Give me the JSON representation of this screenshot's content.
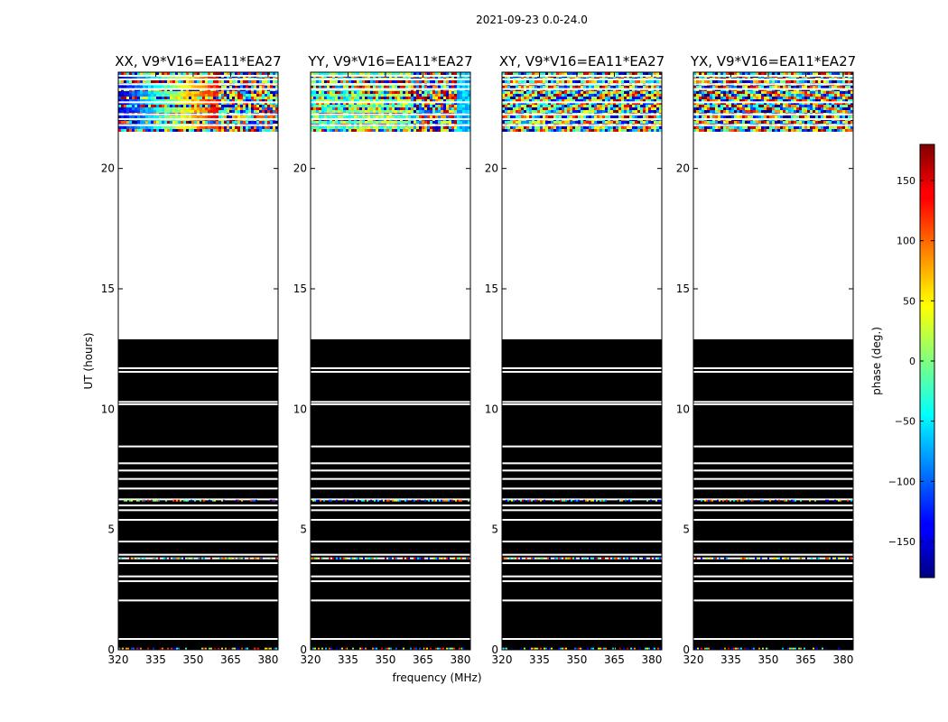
{
  "figure": {
    "suptitle": "2021-09-23 0.0-24.0"
  },
  "chart_data": {
    "type": "heatmap",
    "xlabel": "frequency (MHz)",
    "ylabel": "UT (hours)",
    "xlim": [
      320,
      384
    ],
    "ylim": [
      0,
      24
    ],
    "xticks": [
      320,
      335,
      350,
      365,
      380
    ],
    "yticks": [
      0,
      5,
      10,
      15,
      20
    ],
    "colorbar": {
      "label": "phase (deg.)",
      "range": [
        -180,
        180
      ],
      "ticks": [
        -150,
        -100,
        -50,
        0,
        50,
        100,
        150
      ],
      "colormap": "jet"
    },
    "black_block_hours": [
      0.0,
      12.9
    ],
    "black_block_gaps": [
      0.45,
      2.05,
      2.85,
      3.05,
      3.6,
      3.8,
      3.95,
      4.5,
      5.4,
      5.8,
      6.0,
      6.25,
      6.7,
      7.1,
      7.45,
      7.75,
      8.45,
      10.2,
      10.3,
      11.55,
      11.7
    ],
    "noisy_rows": [
      0.05,
      3.8,
      6.2
    ],
    "gap_hours": [
      12.9,
      21.6
    ],
    "top_data_hours": [
      21.6,
      24.0
    ],
    "top_data_gaps": [
      21.8,
      22.05,
      22.25,
      22.75,
      23.3,
      23.5,
      23.7,
      23.85
    ],
    "panels": [
      {
        "title": "XX, V9*V16=EA11*EA27",
        "pattern": "xx"
      },
      {
        "title": "YY, V9*V16=EA11*EA27",
        "pattern": "yy"
      },
      {
        "title": "XY, V9*V16=EA11*EA27",
        "pattern": "xy"
      },
      {
        "title": "YX, V9*V16=EA11*EA27",
        "pattern": "yx"
      }
    ]
  }
}
